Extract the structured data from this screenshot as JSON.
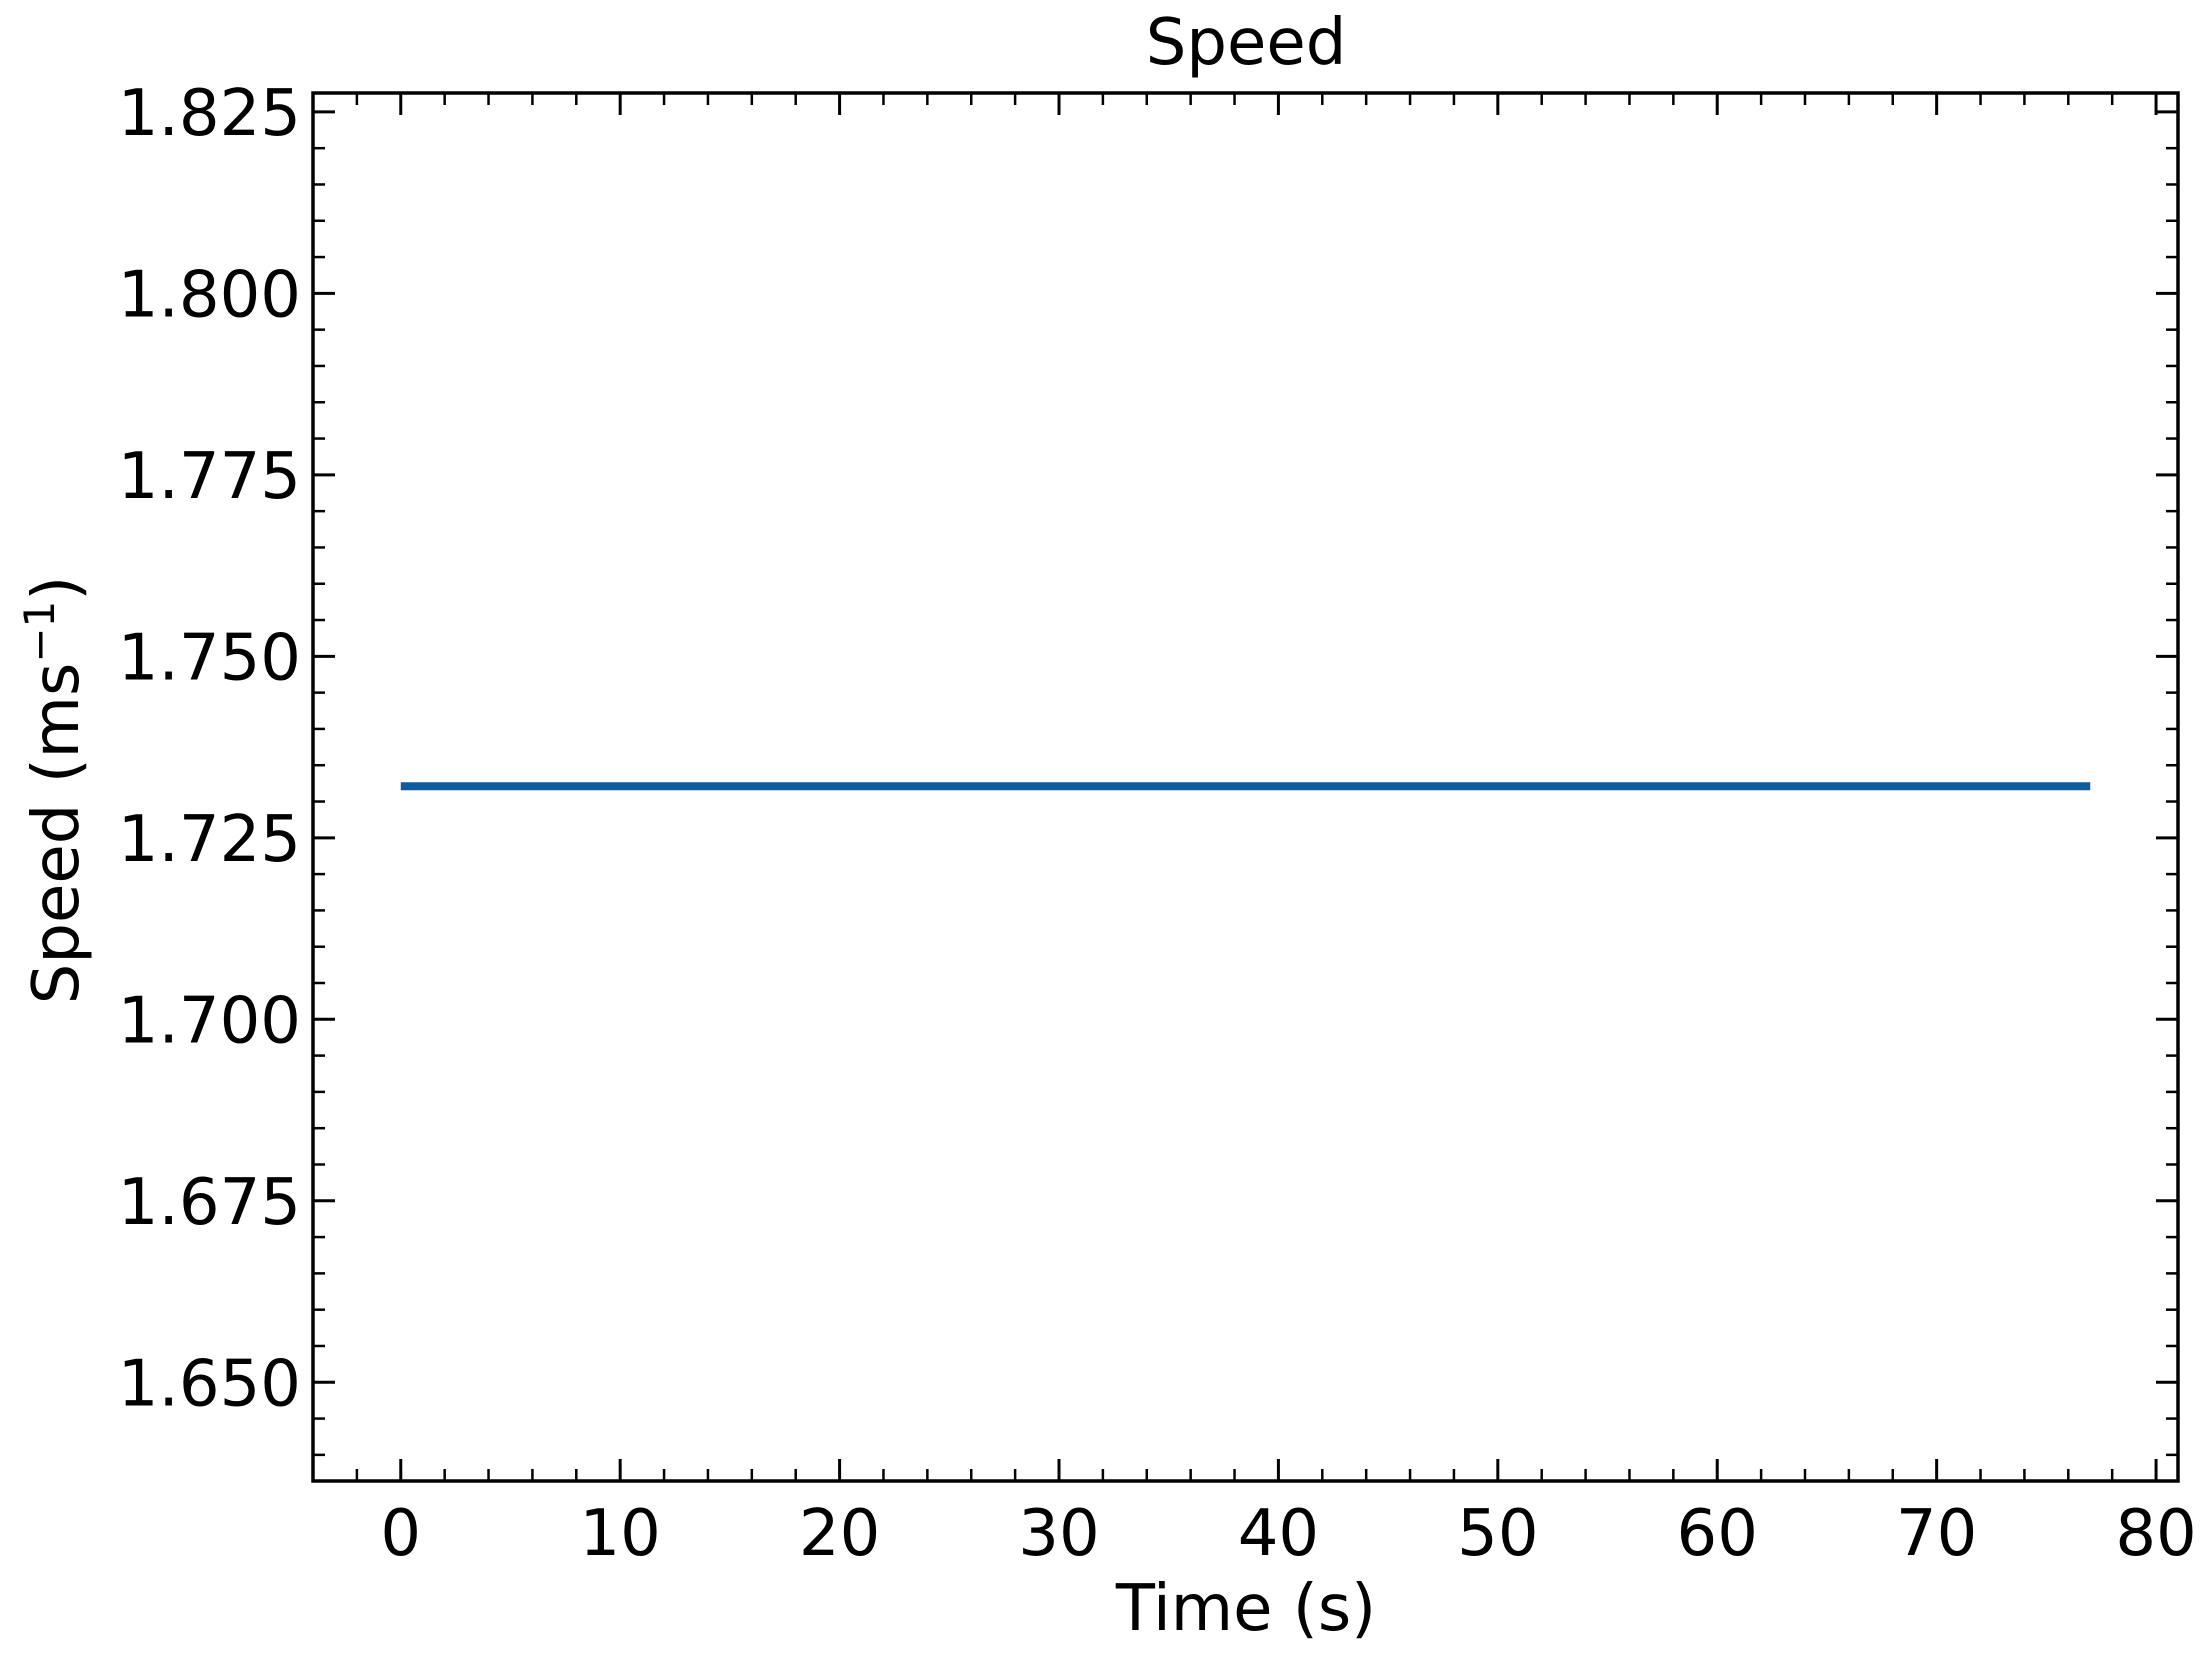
{
  "chart_data": {
    "type": "line",
    "title": "Speed",
    "xlabel": "Time (s)",
    "ylabel": "Speed (ms",
    "ylabel_superscript": "−1",
    "ylabel_suffix": ")",
    "xlim": [
      -4,
      81
    ],
    "ylim": [
      1.6364,
      1.8276
    ],
    "xticks": [
      0,
      10,
      20,
      30,
      40,
      50,
      60,
      70,
      80
    ],
    "xtick_labels": [
      "0",
      "10",
      "20",
      "30",
      "40",
      "50",
      "60",
      "70",
      "80"
    ],
    "x_minor_step": 2,
    "yticks": [
      1.65,
      1.675,
      1.7,
      1.725,
      1.75,
      1.775,
      1.8,
      1.825
    ],
    "ytick_labels": [
      "1.650",
      "1.675",
      "1.700",
      "1.725",
      "1.750",
      "1.775",
      "1.800",
      "1.825"
    ],
    "y_minor_step": 0.005,
    "grid": false,
    "series": [
      {
        "x": [
          0,
          77
        ],
        "y": [
          1.7321,
          1.7321
        ],
        "color": "#0f5b9b"
      }
    ]
  }
}
